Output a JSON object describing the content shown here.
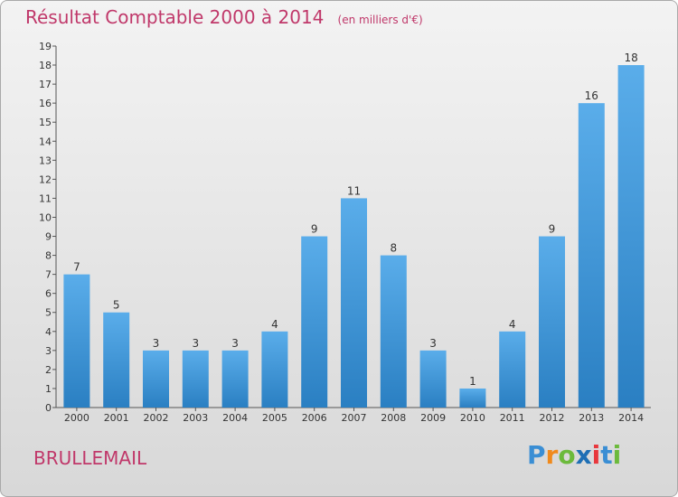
{
  "header": {
    "title": "Résultat Comptable 2000 à 2014",
    "subtitle": "(en milliers d'€)"
  },
  "footer": {
    "commune": "BRULLEMAIL",
    "logo": [
      "P",
      "r",
      "o",
      "x",
      "i",
      "t",
      "i"
    ]
  },
  "chart_data": {
    "type": "bar",
    "title": "Résultat Comptable 2000 à 2014",
    "subtitle": "(en milliers d'€)",
    "categories": [
      "2000",
      "2001",
      "2002",
      "2003",
      "2004",
      "2005",
      "2006",
      "2007",
      "2008",
      "2009",
      "2010",
      "2011",
      "2012",
      "2013",
      "2014"
    ],
    "values": [
      7,
      5,
      3,
      3,
      3,
      4,
      9,
      11,
      8,
      3,
      1,
      4,
      9,
      16,
      18
    ],
    "ylim": [
      0,
      19
    ],
    "yticks": [
      0,
      1,
      2,
      3,
      4,
      5,
      6,
      7,
      8,
      9,
      10,
      11,
      12,
      13,
      14,
      15,
      16,
      17,
      18,
      19
    ],
    "grid": false,
    "bar_color": "#3b97d8"
  }
}
